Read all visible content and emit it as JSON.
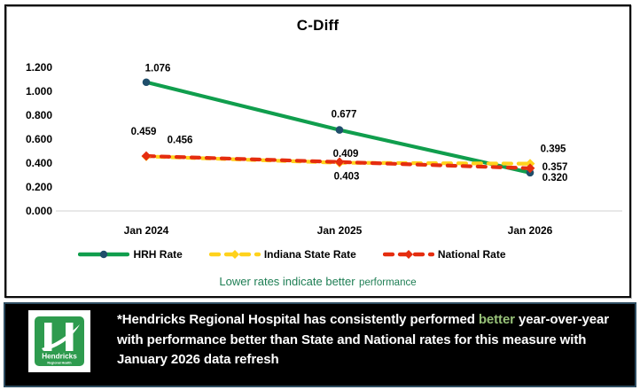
{
  "colors": {
    "hrh_green": "#109e4d",
    "hrh_marker_navy": "#1f4e6b",
    "indiana_yellow": "#ffd21c",
    "national_red": "#e52d0f",
    "axis_line_gray": "#d9d9d9",
    "note_green": "#1e7e54",
    "highlight_green": "#97c178",
    "logo_green": "#2e9b4e",
    "footer_bg": "#000000",
    "footer_border": "#2e4d61"
  },
  "chart_data": {
    "type": "line",
    "title": "C-Diff",
    "categories": [
      "Jan 2024",
      "Jan 2025",
      "Jan 2026"
    ],
    "series": [
      {
        "name": "HRH Rate",
        "values": [
          1.076,
          0.677,
          0.32
        ],
        "color": "#109e4d",
        "line_style": "solid",
        "marker": "circle",
        "marker_color": "#1f4e6b",
        "label_offsets": [
          [
            13,
            -16
          ],
          [
            5,
            -18
          ],
          [
            28,
            5
          ]
        ]
      },
      {
        "name": "Indiana State Rate",
        "values": [
          0.456,
          0.403,
          0.395
        ],
        "color": "#ffd21c",
        "line_style": "dashed",
        "marker": "diamond",
        "marker_color": "#ffd21c",
        "label_offsets": [
          [
            38,
            -19
          ],
          [
            8,
            15
          ],
          [
            26,
            -17
          ]
        ]
      },
      {
        "name": "National Rate",
        "values": [
          0.459,
          0.409,
          0.357
        ],
        "color": "#e52d0f",
        "line_style": "dashed",
        "marker": "diamond",
        "marker_color": "#e52d0f",
        "label_offsets": [
          [
            -3,
            -28
          ],
          [
            7,
            -10
          ],
          [
            28,
            -2
          ]
        ]
      }
    ],
    "ylim": [
      0,
      1.2
    ],
    "y_tick_labels": [
      "0.000",
      "0.200",
      "0.400",
      "0.600",
      "0.800",
      "1.000",
      "1.200"
    ],
    "grid": false,
    "legend_position": "bottom",
    "annotation": "Lower rates indicate better performance"
  },
  "note": {
    "main": "Lower rates indicate better",
    "small": "performance"
  },
  "footer": {
    "text_pre": "*Hendricks Regional Hospital has consistently performed ",
    "highlight": "better",
    "text_post": " year-over-year with performance better than State and National rates for this measure with January 2026 data refresh",
    "logo_title": "Hendricks",
    "logo_subtitle": "Regional Health"
  }
}
